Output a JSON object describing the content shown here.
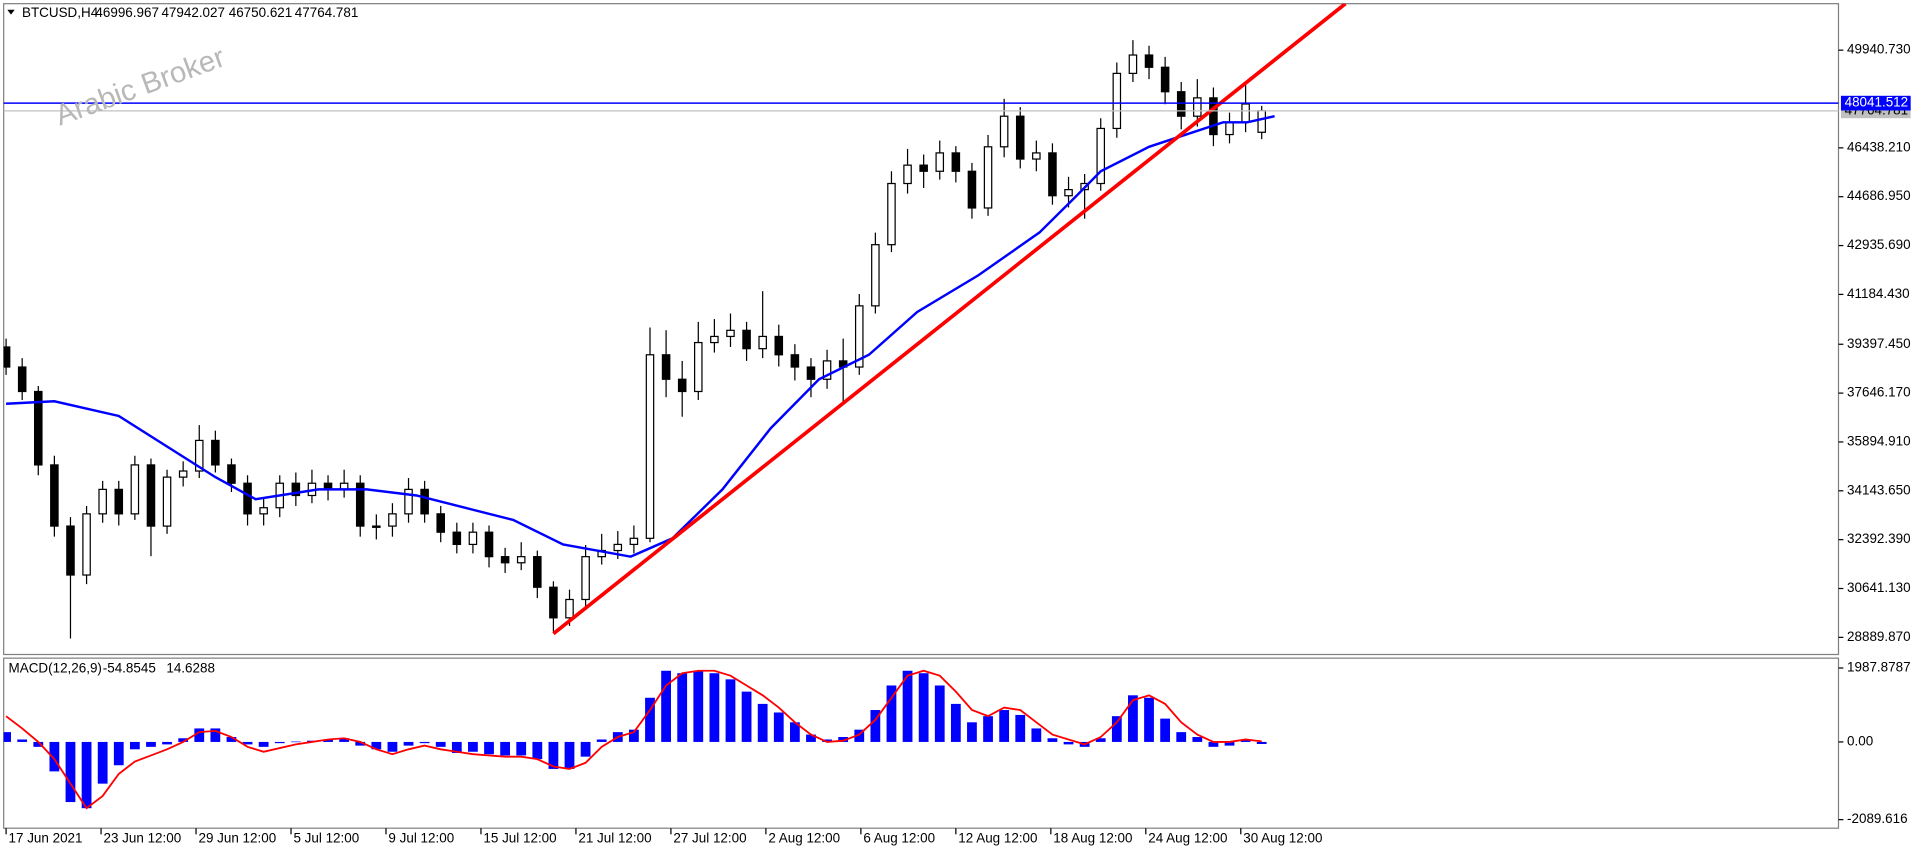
{
  "chart_data": [
    {
      "type": "candlestick",
      "symbol": "BTCUSD,H4",
      "watermark": "Arabic Broker",
      "candle_color": "#000000",
      "open": [
        39300,
        38581,
        37704,
        35072,
        32879,
        31125,
        33318,
        34195,
        33318,
        35072,
        32879,
        34634,
        34853,
        35950,
        35072,
        34415,
        33318,
        33537,
        34415,
        33976,
        34415,
        34195,
        34415,
        32879,
        32879,
        33318,
        34195,
        33318,
        32660,
        32222,
        32660,
        31783,
        31564,
        31783,
        30687,
        29590,
        30248,
        31783,
        32003,
        32222,
        32441,
        39020,
        38143,
        37704,
        39458,
        39678,
        39897,
        39239,
        39678,
        39020,
        38581,
        38143,
        38801,
        38581,
        40774,
        42967,
        45160,
        45818,
        45599,
        46257,
        45599,
        44283,
        46476,
        47573,
        46037,
        46257,
        44722,
        44941,
        45160,
        47134,
        49108,
        49766,
        49327,
        48450,
        47573,
        48230,
        46915,
        47353,
        46996.967
      ],
      "high": [
        39600,
        38900,
        37900,
        35400,
        33200,
        33600,
        34500,
        34500,
        35400,
        35300,
        34900,
        35200,
        36500,
        36300,
        35300,
        34700,
        33900,
        34700,
        34800,
        34900,
        34700,
        34900,
        34700,
        33300,
        33700,
        34600,
        34500,
        33600,
        33000,
        33000,
        32900,
        32100,
        32300,
        32000,
        30900,
        30600,
        32200,
        32600,
        32700,
        32900,
        40000,
        39900,
        38800,
        40200,
        40300,
        40500,
        40200,
        41300,
        40100,
        39400,
        38900,
        39200,
        39600,
        41200,
        43400,
        45600,
        46400,
        46200,
        46700,
        46500,
        45900,
        46900,
        48200,
        47900,
        46700,
        46600,
        45400,
        45500,
        47500,
        49500,
        50300,
        50100,
        49700,
        48800,
        48900,
        48600,
        47700,
        48700,
        47942.027
      ],
      "low": [
        38300,
        37400,
        34700,
        32500,
        28850,
        30800,
        33000,
        32900,
        33100,
        31800,
        32600,
        34300,
        34600,
        34800,
        34100,
        32900,
        32900,
        33200,
        33600,
        33700,
        33800,
        33900,
        32500,
        32400,
        32500,
        33000,
        33000,
        32300,
        31900,
        31900,
        31400,
        31200,
        31300,
        30300,
        29100,
        29300,
        30000,
        31500,
        31700,
        31900,
        32300,
        37500,
        36800,
        37400,
        39100,
        39300,
        38800,
        38900,
        38600,
        38100,
        37500,
        37800,
        37300,
        38300,
        40500,
        42700,
        44800,
        45000,
        45300,
        45200,
        43900,
        44000,
        46100,
        45700,
        45600,
        44400,
        44300,
        43900,
        44900,
        46800,
        48800,
        48900,
        48000,
        47100,
        47200,
        46500,
        46600,
        47000,
        46750.621
      ],
      "close": [
        38581,
        37704,
        35072,
        32879,
        31125,
        33318,
        34195,
        33318,
        35072,
        32879,
        34634,
        34853,
        35950,
        35072,
        34415,
        33318,
        33537,
        34415,
        33976,
        34415,
        34195,
        34415,
        32879,
        32879,
        33318,
        34195,
        33318,
        32660,
        32222,
        32660,
        31783,
        31564,
        31783,
        30687,
        29590,
        30248,
        31783,
        32003,
        32222,
        32441,
        39020,
        38143,
        37704,
        39458,
        39678,
        39897,
        39239,
        39678,
        39020,
        38581,
        38143,
        38801,
        38581,
        40774,
        42967,
        45160,
        45818,
        45599,
        46257,
        45599,
        44283,
        46476,
        47573,
        46037,
        46257,
        44722,
        44941,
        45160,
        47134,
        49108,
        49766,
        49327,
        48450,
        47573,
        48230,
        46915,
        47353,
        48011,
        47764.781
      ],
      "moving_average": {
        "color": "#0000ff",
        "x": [
          0,
          3,
          7,
          13,
          15.5,
          19.4,
          22.4,
          25.5,
          28.5,
          31.5,
          34.6,
          38.8,
          41.4,
          44.5,
          47.5,
          50.5,
          53.6,
          56.6,
          60.4,
          64.2,
          66.5,
          68,
          71,
          73.3,
          75.6,
          77.1,
          78.8
        ],
        "values": [
          37265,
          37353,
          36827,
          34634,
          33844,
          34195,
          34195,
          33976,
          33537,
          33099,
          32222,
          31783,
          32441,
          34195,
          36388,
          38143,
          39020,
          40555,
          41871,
          43406,
          44722,
          45599,
          46476,
          46915,
          47353,
          47353,
          47573
        ]
      },
      "trendline": {
        "color": "#ff0000",
        "x": [
          34,
          83.2
        ],
        "values": [
          29020,
          51608
        ]
      },
      "hline": {
        "value": 48041.512,
        "color": "#0000ff"
      },
      "xlim": [
        -0.15,
        113.83
      ],
      "xticks": [
        {
          "value": 0,
          "label": "17 Jun 2021"
        },
        {
          "value": 5.9,
          "label": "23 Jun 12:00"
        },
        {
          "value": 11.8,
          "label": "29 Jun 12:00"
        },
        {
          "value": 17.7,
          "label": "5 Jul 12:00"
        },
        {
          "value": 23.6,
          "label": "9 Jul 12:00"
        },
        {
          "value": 29.5,
          "label": "15 Jul 12:00"
        },
        {
          "value": 35.4,
          "label": "21 Jul 12:00"
        },
        {
          "value": 41.3,
          "label": "27 Jul 12:00"
        },
        {
          "value": 47.2,
          "label": "2 Aug 12:00"
        },
        {
          "value": 53.1,
          "label": "6 Aug 12:00"
        },
        {
          "value": 59,
          "label": "12 Aug 12:00"
        },
        {
          "value": 64.9,
          "label": "18 Aug 12:00"
        },
        {
          "value": 70.8,
          "label": "24 Aug 12:00"
        },
        {
          "value": 76.7,
          "label": "30 Aug 12:00"
        }
      ],
      "ylim": [
        28276,
        51607
      ],
      "yticks": [
        {
          "value": 49940.73,
          "label": "49940.730"
        },
        {
          "value": 46438.21,
          "label": "46438.210"
        },
        {
          "value": 44686.95,
          "label": "44686.950"
        },
        {
          "value": 42935.69,
          "label": "42935.690"
        },
        {
          "value": 41184.43,
          "label": "41184.430"
        },
        {
          "value": 39397.45,
          "label": "39397.450"
        },
        {
          "value": 37646.17,
          "label": "37646.170"
        },
        {
          "value": 35894.91,
          "label": "35894.910"
        },
        {
          "value": 34143.65,
          "label": "34143.650"
        },
        {
          "value": 32392.39,
          "label": "32392.390"
        },
        {
          "value": 30641.13,
          "label": "30641.130"
        },
        {
          "value": 28889.87,
          "label": "28889.870"
        }
      ]
    },
    {
      "type": "macd",
      "title": "MACD(12,26,9)",
      "readout": [
        -54.8545,
        14.6288
      ],
      "histogram": {
        "color": "#0000ff",
        "values": [
          264,
          66,
          -132,
          -792,
          -1617,
          -1782,
          -1122,
          -627,
          -198,
          -132,
          -66,
          99,
          363,
          363,
          132,
          -66,
          -132,
          -33,
          10,
          33,
          66,
          99,
          -99,
          -198,
          -264,
          -99,
          -33,
          -132,
          -297,
          -264,
          -330,
          -363,
          -363,
          -462,
          -726,
          -726,
          -396,
          66,
          264,
          330,
          1188,
          1914,
          1848,
          1914,
          1848,
          1683,
          1353,
          1023,
          792,
          528,
          198,
          66,
          132,
          330,
          858,
          1518,
          1914,
          1848,
          1518,
          1023,
          528,
          693,
          858,
          726,
          363,
          99,
          -66,
          -132,
          99,
          693,
          1254,
          1188,
          627,
          264,
          132,
          -132,
          -99,
          66,
          -54.8545
        ]
      },
      "signal": {
        "color": "#ff0000",
        "values": [
          693,
          363,
          0,
          -462,
          -1122,
          -1782,
          -1452,
          -858,
          -528,
          -363,
          -198,
          0,
          264,
          297,
          132,
          -132,
          -264,
          -165,
          -66,
          0,
          66,
          99,
          0,
          -198,
          -330,
          -198,
          -99,
          -198,
          -264,
          -330,
          -363,
          -396,
          -396,
          -462,
          -660,
          -726,
          -561,
          -132,
          132,
          264,
          858,
          1518,
          1848,
          1914,
          1914,
          1782,
          1518,
          1254,
          924,
          528,
          198,
          0,
          33,
          198,
          594,
          1188,
          1782,
          1914,
          1782,
          1353,
          858,
          693,
          924,
          858,
          528,
          198,
          66,
          -66,
          132,
          528,
          1122,
          1254,
          1023,
          528,
          198,
          0,
          0,
          66,
          14.6288
        ]
      },
      "ylim": [
        -2320,
        2253
      ],
      "yticks": [
        1987.8787,
        {
          "value": 0,
          "label": "0.00"
        },
        -2089.616
      ]
    }
  ]
}
